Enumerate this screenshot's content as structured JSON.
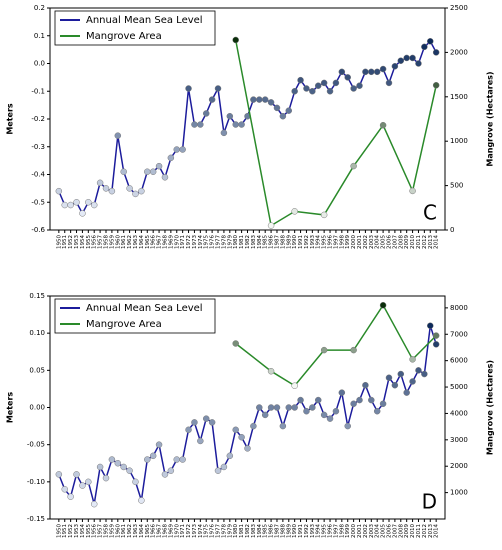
{
  "chart_data": [
    {
      "type": "line",
      "annotation": "C",
      "ylabel": "Meters",
      "y2label": "Mangrove (Hectares)",
      "x": [
        1950,
        1951,
        1952,
        1953,
        1954,
        1955,
        1956,
        1957,
        1958,
        1959,
        1960,
        1961,
        1962,
        1963,
        1964,
        1965,
        1966,
        1967,
        1968,
        1969,
        1970,
        1971,
        1972,
        1973,
        1974,
        1975,
        1976,
        1977,
        1978,
        1979,
        1980,
        1981,
        1982,
        1983,
        1984,
        1985,
        1986,
        1987,
        1988,
        1989,
        1990,
        1991,
        1992,
        1993,
        1994,
        1995,
        1996,
        1997,
        1998,
        1999,
        2000,
        2001,
        2002,
        2003,
        2004,
        2005,
        2006,
        2007,
        2008,
        2009,
        2010,
        2011,
        2012,
        2013,
        2014
      ],
      "xlim": [
        1948.5,
        2015.5
      ],
      "ylim": [
        -0.6,
        0.2
      ],
      "yticks": [
        -0.6,
        -0.5,
        -0.4,
        -0.3,
        -0.2,
        -0.1,
        {
          "value": 0,
          "label": "0.0"
        },
        0.1,
        0.2
      ],
      "y2lim": [
        0,
        2500
      ],
      "y2ticks": [
        0,
        500,
        1000,
        1500,
        2000,
        2500
      ],
      "legend": "upper left",
      "series": [
        {
          "name": "Annual Mean Sea Level",
          "color": "#1c1c9c",
          "values": [
            -0.46,
            -0.51,
            -0.51,
            -0.5,
            -0.54,
            -0.5,
            -0.51,
            -0.43,
            -0.45,
            -0.46,
            -0.26,
            -0.39,
            -0.45,
            -0.47,
            -0.46,
            -0.39,
            -0.39,
            -0.37,
            -0.41,
            -0.34,
            -0.31,
            -0.31,
            -0.09,
            -0.22,
            -0.22,
            -0.18,
            -0.13,
            -0.09,
            -0.25,
            -0.19,
            -0.22,
            -0.22,
            -0.19,
            -0.13,
            -0.13,
            -0.13,
            -0.14,
            -0.16,
            -0.19,
            -0.17,
            -0.1,
            -0.06,
            -0.09,
            -0.1,
            -0.08,
            -0.07,
            -0.1,
            -0.07,
            -0.03,
            -0.05,
            -0.09,
            -0.08,
            -0.03,
            -0.03,
            -0.03,
            -0.02,
            -0.07,
            -0.01,
            0.01,
            0.02,
            0.02,
            0.0,
            0.06,
            0.08,
            0.04
          ]
        },
        {
          "name": "Mangrove Area",
          "color": "#2a8a2a",
          "axis": "y2",
          "x": [
            1980,
            1986,
            1990,
            1995,
            2000,
            2005,
            2010,
            2014
          ],
          "values": [
            2140,
            50,
            210,
            170,
            720,
            1180,
            440,
            1630
          ]
        }
      ]
    },
    {
      "type": "line",
      "annotation": "D",
      "ylabel": "Meters",
      "y2label": "Mangrove (Hectares)",
      "x": [
        1950,
        1951,
        1952,
        1953,
        1954,
        1955,
        1956,
        1957,
        1958,
        1959,
        1960,
        1961,
        1962,
        1963,
        1964,
        1965,
        1966,
        1967,
        1968,
        1969,
        1970,
        1971,
        1972,
        1973,
        1974,
        1975,
        1976,
        1977,
        1978,
        1979,
        1980,
        1981,
        1982,
        1983,
        1984,
        1985,
        1986,
        1987,
        1988,
        1989,
        1990,
        1991,
        1992,
        1993,
        1994,
        1995,
        1996,
        1997,
        1998,
        1999,
        2000,
        2001,
        2002,
        2003,
        2004,
        2005,
        2006,
        2007,
        2008,
        2009,
        2010,
        2011,
        2012,
        2013,
        2014
      ],
      "xlim": [
        1948.5,
        2015.5
      ],
      "ylim": [
        -0.15,
        0.15
      ],
      "yticks": [
        -0.15,
        {
          "value": -0.1,
          "label": "-0.10"
        },
        -0.05,
        {
          "value": 0,
          "label": "0.00"
        },
        0.05,
        {
          "value": 0.1,
          "label": "0.10"
        },
        0.15
      ],
      "y2lim": [
        0,
        8450
      ],
      "y2ticks": [
        1000,
        2000,
        3000,
        4000,
        5000,
        6000,
        7000,
        8000
      ],
      "legend": "upper left",
      "series": [
        {
          "name": "Annual Mean Sea Level",
          "color": "#1c1c9c",
          "values": [
            -0.09,
            -0.11,
            -0.12,
            -0.09,
            -0.105,
            -0.1,
            -0.13,
            -0.08,
            -0.095,
            -0.07,
            -0.075,
            -0.08,
            -0.085,
            -0.1,
            -0.125,
            -0.07,
            -0.065,
            -0.05,
            -0.09,
            -0.085,
            -0.07,
            -0.07,
            -0.03,
            -0.02,
            -0.045,
            -0.015,
            -0.02,
            -0.085,
            -0.08,
            -0.065,
            -0.03,
            -0.04,
            -0.055,
            -0.025,
            0.0,
            -0.01,
            0.0,
            0.0,
            -0.025,
            0.0,
            0.0,
            0.01,
            -0.005,
            0.0,
            0.01,
            -0.01,
            -0.015,
            -0.005,
            0.02,
            -0.025,
            0.005,
            0.01,
            0.03,
            0.01,
            -0.005,
            0.005,
            0.04,
            0.03,
            0.045,
            0.02,
            0.035,
            0.05,
            0.045,
            0.11,
            0.085
          ]
        },
        {
          "name": "Mangrove Area",
          "color": "#2a8a2a",
          "axis": "y2",
          "x": [
            1980,
            1986,
            1990,
            1995,
            2000,
            2005,
            2010,
            2014
          ],
          "values": [
            6650,
            5600,
            5050,
            6400,
            6400,
            8100,
            6050,
            6950
          ]
        }
      ]
    }
  ]
}
